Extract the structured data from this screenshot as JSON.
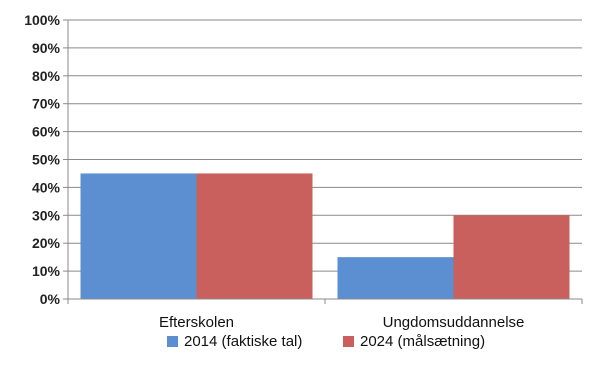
{
  "chart_data": {
    "type": "bar",
    "categories": [
      "Efterskolen",
      "Ungdomsuddannelse"
    ],
    "series": [
      {
        "name": "2014 (faktiske tal)",
        "values": [
          45,
          15
        ],
        "color": "#5b8fd1"
      },
      {
        "name": "2024 (målsætning)",
        "values": [
          45,
          30
        ],
        "color": "#c9605e"
      }
    ],
    "ylim": [
      0,
      100
    ],
    "yticks": [
      "0%",
      "10%",
      "20%",
      "30%",
      "40%",
      "50%",
      "60%",
      "70%",
      "80%",
      "90%",
      "100%"
    ],
    "grid": true,
    "legend_position": "bottom"
  }
}
